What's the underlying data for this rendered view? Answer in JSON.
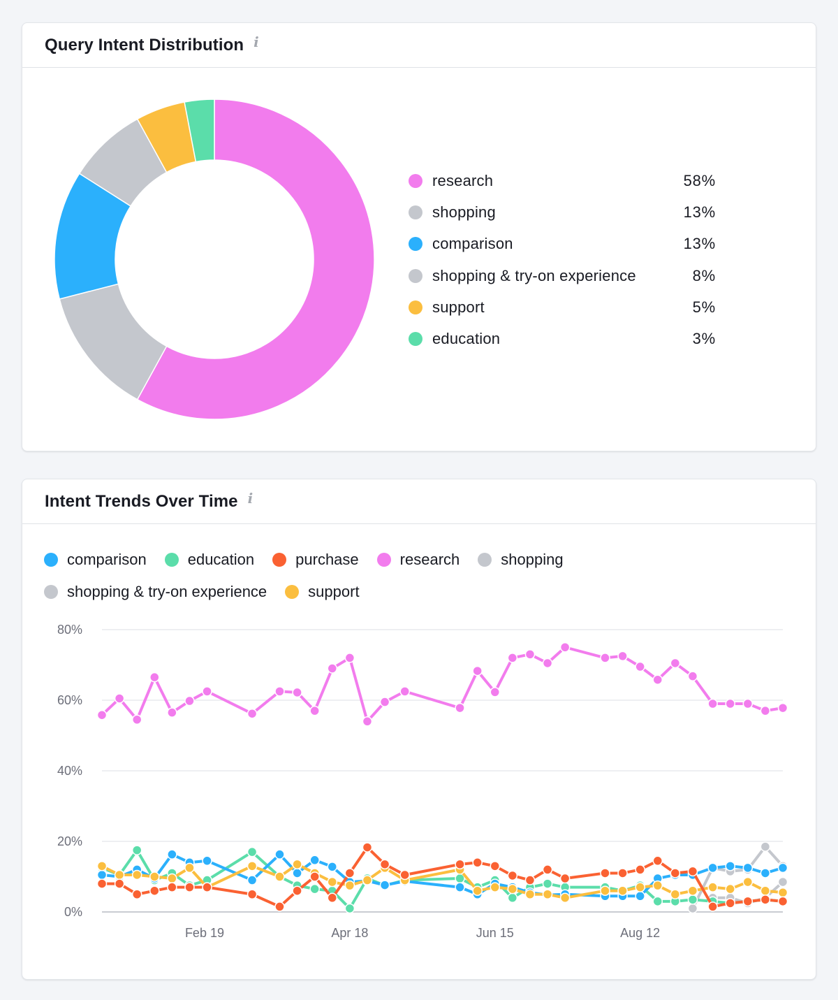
{
  "distribution_card": {
    "title": "Query Intent Distribution",
    "info_icon": "info-icon",
    "chart_data": {
      "type": "pie",
      "variant": "donut",
      "title": "Query Intent Distribution",
      "legend_position": "right",
      "slices": [
        {
          "label": "research",
          "value": 58,
          "display": "58%",
          "color": "#f27ced"
        },
        {
          "label": "shopping",
          "value": 13,
          "display": "13%",
          "color": "#c4c7cd"
        },
        {
          "label": "comparison",
          "value": 13,
          "display": "13%",
          "color": "#2bb0fc"
        },
        {
          "label": "shopping & try-on experience",
          "value": 8,
          "display": "8%",
          "color": "#c4c7cd"
        },
        {
          "label": "support",
          "value": 5,
          "display": "5%",
          "color": "#fbbe3f"
        },
        {
          "label": "education",
          "value": 3,
          "display": "3%",
          "color": "#5bddaa"
        }
      ]
    }
  },
  "trends_card": {
    "title": "Intent Trends Over Time",
    "info_icon": "info-icon",
    "chart_data": {
      "type": "line",
      "title": "Intent Trends Over Time",
      "xlabel": "",
      "ylabel": "",
      "ylim": [
        0,
        80
      ],
      "y_ticks": [
        "0%",
        "20%",
        "40%",
        "60%",
        "80%"
      ],
      "y_tick_values": [
        0,
        20,
        40,
        60,
        80
      ],
      "x_tick_labels": [
        "Feb 19",
        "Apr 18",
        "Jun 15",
        "Aug 12"
      ],
      "x_tick_days": [
        41,
        99,
        157,
        215
      ],
      "x_range_days": [
        0,
        272
      ],
      "grid": true,
      "legend_position": "top-left",
      "legend": [
        {
          "name": "comparison",
          "color": "#2bb0fc"
        },
        {
          "name": "education",
          "color": "#5bddaa"
        },
        {
          "name": "purchase",
          "color": "#fa6132"
        },
        {
          "name": "research",
          "color": "#f27ced"
        },
        {
          "name": "shopping",
          "color": "#c4c7cd"
        },
        {
          "name": "shopping & try-on experience",
          "color": "#c4c7cd"
        },
        {
          "name": "support",
          "color": "#fbbe3f"
        }
      ],
      "series": [
        {
          "name": "research",
          "color": "#f27ced",
          "points": [
            [
              0,
              55.8
            ],
            [
              7,
              60.5
            ],
            [
              14,
              54.5
            ],
            [
              21,
              66.5
            ],
            [
              28,
              56.5
            ],
            [
              35,
              59.8
            ],
            [
              42,
              62.5
            ],
            [
              60,
              56.2
            ],
            [
              71,
              62.5
            ],
            [
              78,
              62.2
            ],
            [
              85,
              57
            ],
            [
              92,
              69
            ],
            [
              99,
              72
            ],
            [
              106,
              54
            ],
            [
              113,
              59.5
            ],
            [
              121,
              62.5
            ],
            [
              143,
              57.8
            ],
            [
              150,
              68.3
            ],
            [
              157,
              62.3
            ],
            [
              164,
              72
            ],
            [
              171,
              73
            ],
            [
              178,
              70.5
            ],
            [
              185,
              75
            ],
            [
              201,
              72
            ],
            [
              208,
              72.5
            ],
            [
              215,
              69.5
            ],
            [
              222,
              65.8
            ],
            [
              229,
              70.5
            ],
            [
              236,
              66.8
            ],
            [
              244,
              59
            ],
            [
              251,
              59
            ],
            [
              258,
              59
            ],
            [
              265,
              57
            ],
            [
              272,
              57.8
            ]
          ]
        },
        {
          "name": "comparison",
          "color": "#2bb0fc",
          "points": [
            [
              0,
              10.5
            ],
            [
              7,
              10
            ],
            [
              14,
              12
            ],
            [
              21,
              9.5
            ],
            [
              28,
              16.3
            ],
            [
              35,
              14
            ],
            [
              42,
              14.5
            ],
            [
              60,
              9
            ],
            [
              71,
              16.3
            ],
            [
              78,
              11
            ],
            [
              85,
              14.7
            ],
            [
              92,
              12.8
            ],
            [
              99,
              8.5
            ],
            [
              106,
              8.8
            ],
            [
              113,
              7.6
            ],
            [
              121,
              8.7
            ],
            [
              143,
              7
            ],
            [
              150,
              5
            ],
            [
              157,
              8
            ],
            [
              164,
              7
            ],
            [
              171,
              5.5
            ],
            [
              178,
              4.8
            ],
            [
              185,
              5
            ],
            [
              201,
              4.5
            ],
            [
              208,
              4.5
            ],
            [
              215,
              4.5
            ],
            [
              222,
              9.5
            ],
            [
              229,
              10.5
            ],
            [
              236,
              10.5
            ],
            [
              244,
              12.5
            ],
            [
              251,
              13
            ],
            [
              258,
              12.5
            ],
            [
              265,
              11
            ],
            [
              272,
              12.5
            ]
          ]
        },
        {
          "name": "education",
          "color": "#5bddaa",
          "points": [
            [
              0,
              12.5
            ],
            [
              7,
              10.5
            ],
            [
              14,
              17.5
            ],
            [
              21,
              9
            ],
            [
              28,
              11
            ],
            [
              35,
              7.5
            ],
            [
              42,
              9
            ],
            [
              60,
              17
            ],
            [
              71,
              10
            ],
            [
              78,
              7.5
            ],
            [
              85,
              6.5
            ],
            [
              92,
              6
            ],
            [
              99,
              1
            ],
            [
              106,
              9.5
            ],
            [
              113,
              7.5
            ],
            [
              121,
              9
            ],
            [
              143,
              9.5
            ],
            [
              150,
              7
            ],
            [
              157,
              9
            ],
            [
              164,
              4
            ],
            [
              171,
              7
            ],
            [
              178,
              8
            ],
            [
              185,
              7
            ],
            [
              201,
              7
            ],
            [
              208,
              6
            ],
            [
              215,
              7.5
            ],
            [
              222,
              3
            ],
            [
              229,
              3
            ],
            [
              236,
              3.5
            ],
            [
              244,
              3
            ],
            [
              251,
              2.5
            ],
            [
              258,
              3
            ],
            [
              265,
              3.5
            ],
            [
              272,
              3
            ]
          ]
        },
        {
          "name": "purchase",
          "color": "#fa6132",
          "points": [
            [
              0,
              8
            ],
            [
              7,
              8
            ],
            [
              14,
              5
            ],
            [
              21,
              6
            ],
            [
              28,
              7
            ],
            [
              35,
              7
            ],
            [
              42,
              7
            ],
            [
              60,
              5
            ],
            [
              71,
              1.5
            ],
            [
              78,
              6
            ],
            [
              85,
              10
            ],
            [
              92,
              4
            ],
            [
              99,
              11
            ],
            [
              106,
              18.3
            ],
            [
              113,
              13.5
            ],
            [
              121,
              10.5
            ],
            [
              143,
              13.5
            ],
            [
              150,
              14
            ],
            [
              157,
              13
            ],
            [
              164,
              10.3
            ],
            [
              171,
              9
            ],
            [
              178,
              12
            ],
            [
              185,
              9.5
            ],
            [
              201,
              11
            ],
            [
              208,
              11
            ],
            [
              215,
              12
            ],
            [
              222,
              14.5
            ],
            [
              229,
              11
            ],
            [
              236,
              11.5
            ],
            [
              244,
              1.5
            ],
            [
              251,
              2.5
            ],
            [
              258,
              3
            ],
            [
              265,
              3.5
            ],
            [
              272,
              3
            ]
          ]
        },
        {
          "name": "shopping",
          "color": "#c4c7cd",
          "points": [
            [
              236,
              1
            ],
            [
              244,
              12.5
            ],
            [
              251,
              11.5
            ],
            [
              258,
              12
            ],
            [
              265,
              18.5
            ],
            [
              272,
              13
            ]
          ]
        },
        {
          "name": "shopping & try-on experience",
          "color": "#c4c7cd",
          "points": [
            [
              244,
              4
            ],
            [
              251,
              4
            ],
            [
              258,
              2.5
            ],
            [
              265,
              4
            ],
            [
              272,
              8.5
            ]
          ]
        },
        {
          "name": "support",
          "color": "#fbbe3f",
          "points": [
            [
              0,
              13
            ],
            [
              7,
              10.5
            ],
            [
              14,
              10.5
            ],
            [
              21,
              10
            ],
            [
              28,
              9.5
            ],
            [
              35,
              12.5
            ],
            [
              42,
              7
            ],
            [
              60,
              13
            ],
            [
              71,
              10
            ],
            [
              78,
              13.5
            ],
            [
              85,
              11
            ],
            [
              92,
              8.5
            ],
            [
              99,
              7.5
            ],
            [
              106,
              9
            ],
            [
              113,
              12.5
            ],
            [
              121,
              9
            ],
            [
              143,
              12
            ],
            [
              150,
              6
            ],
            [
              157,
              7
            ],
            [
              164,
              6.5
            ],
            [
              171,
              5
            ],
            [
              178,
              5
            ],
            [
              185,
              4
            ],
            [
              201,
              6
            ],
            [
              208,
              6
            ],
            [
              215,
              7
            ],
            [
              222,
              7.5
            ],
            [
              229,
              5
            ],
            [
              236,
              6
            ],
            [
              244,
              7
            ],
            [
              251,
              6.5
            ],
            [
              258,
              8.5
            ],
            [
              265,
              6
            ],
            [
              272,
              5.5
            ]
          ]
        }
      ]
    }
  }
}
